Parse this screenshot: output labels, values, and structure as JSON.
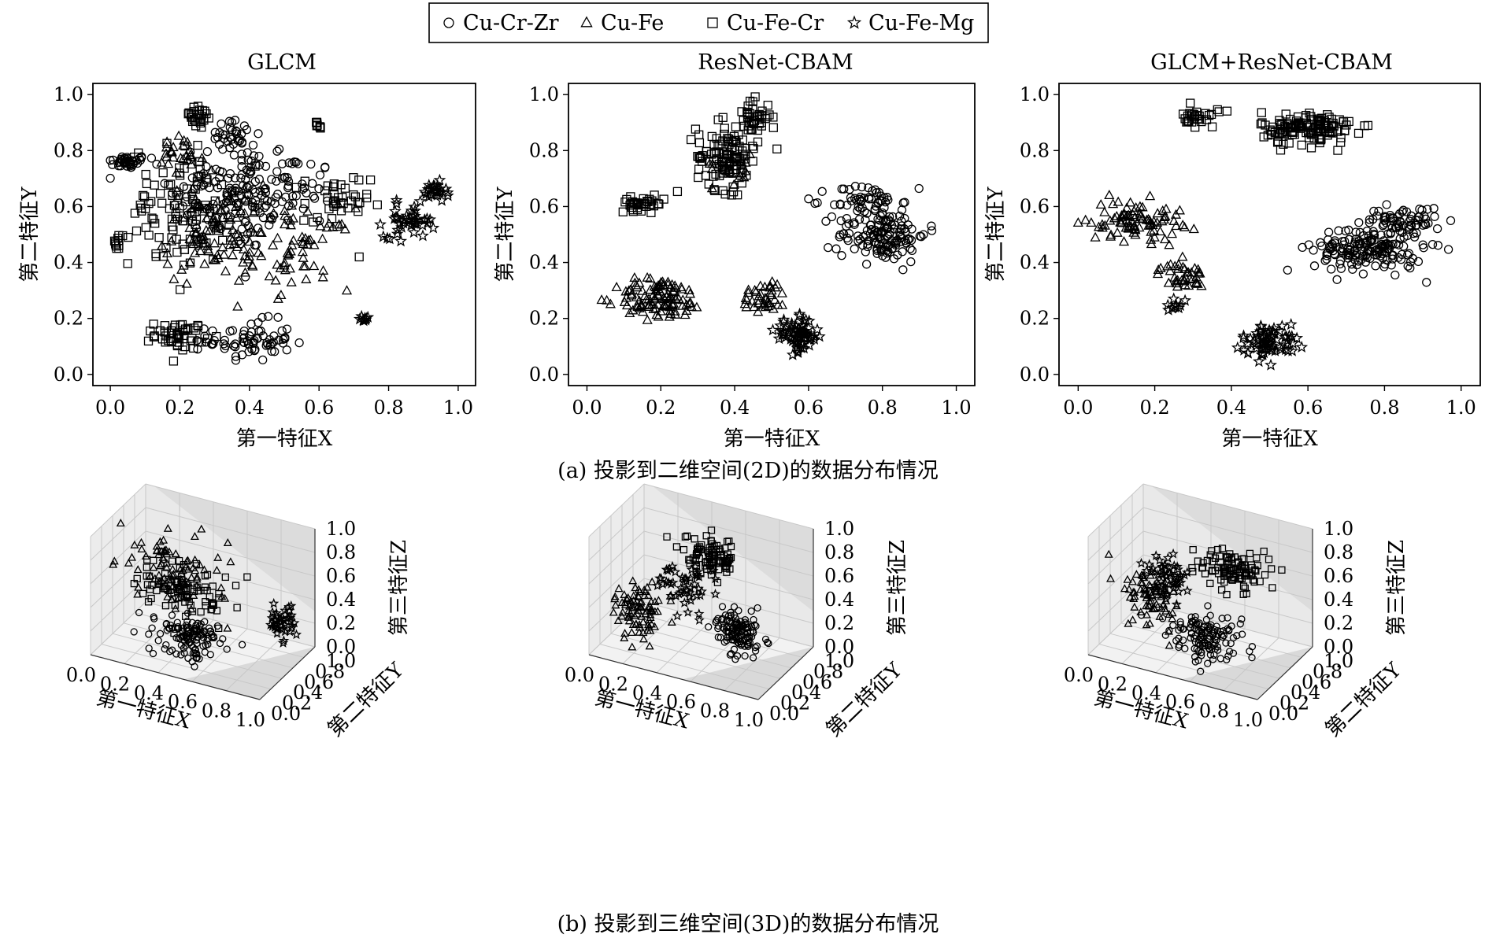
{
  "legend": {
    "items": [
      {
        "name": "Cu-Cr-Zr",
        "marker": "circle"
      },
      {
        "name": "Cu-Fe",
        "marker": "triangle"
      },
      {
        "name": "Cu-Fe-Cr",
        "marker": "square"
      },
      {
        "name": "Cu-Fe-Mg",
        "marker": "star"
      }
    ],
    "placement": "top-center"
  },
  "captions": {
    "a": "(a) 投影到二维空间(2D)的数据分布情况",
    "b": "(b) 投影到三维空间(3D)的数据分布情况"
  },
  "chart_data": [
    {
      "type": "scatter",
      "title": "GLCM",
      "xlabel": "第一特征X",
      "ylabel": "第二特征Y",
      "xlim": [
        0,
        1
      ],
      "ylim": [
        0,
        1
      ],
      "xticks": [
        "0.0",
        "0.2",
        "0.4",
        "0.6",
        "0.8",
        "1.0"
      ],
      "yticks": [
        "0.0",
        "0.2",
        "0.4",
        "0.6",
        "0.8",
        "1.0"
      ],
      "series": [
        {
          "name": "Cu-Cr-Zr",
          "clusters": [
            [
              0.05,
              0.76,
              0.05,
              0.02,
              40
            ],
            [
              0.35,
              0.65,
              0.15,
              0.18,
              120
            ],
            [
              0.5,
              0.65,
              0.12,
              0.12,
              60
            ],
            [
              0.4,
              0.12,
              0.1,
              0.06,
              70
            ],
            [
              0.35,
              0.86,
              0.06,
              0.04,
              30
            ]
          ]
        },
        {
          "name": "Cu-Fe",
          "clusters": [
            [
              0.3,
              0.5,
              0.12,
              0.15,
              100
            ],
            [
              0.55,
              0.45,
              0.12,
              0.12,
              60
            ],
            [
              0.2,
              0.78,
              0.06,
              0.06,
              25
            ]
          ]
        },
        {
          "name": "Cu-Fe-Cr",
          "clusters": [
            [
              0.2,
              0.6,
              0.12,
              0.18,
              100
            ],
            [
              0.2,
              0.14,
              0.06,
              0.04,
              50
            ],
            [
              0.65,
              0.6,
              0.08,
              0.1,
              40
            ],
            [
              0.25,
              0.92,
              0.04,
              0.04,
              25
            ],
            [
              0.02,
              0.47,
              0.01,
              0.02,
              10
            ],
            [
              0.6,
              0.89,
              0.02,
              0.01,
              8
            ]
          ]
        },
        {
          "name": "Cu-Fe-Mg",
          "clusters": [
            [
              0.86,
              0.55,
              0.06,
              0.05,
              45
            ],
            [
              0.93,
              0.65,
              0.03,
              0.03,
              25
            ],
            [
              0.73,
              0.2,
              0.01,
              0.01,
              8
            ]
          ]
        }
      ]
    },
    {
      "type": "scatter",
      "title": "ResNet-CBAM",
      "xlabel": "第一特征X",
      "ylabel": "第二特征Y",
      "xlim": [
        0,
        1
      ],
      "ylim": [
        0,
        1
      ],
      "xticks": [
        "0.0",
        "0.2",
        "0.4",
        "0.6",
        "0.8",
        "1.0"
      ],
      "yticks": [
        "0.0",
        "0.2",
        "0.4",
        "0.6",
        "0.8",
        "1.0"
      ],
      "series": [
        {
          "name": "Cu-Cr-Zr",
          "clusters": [
            [
              0.8,
              0.5,
              0.1,
              0.08,
              140
            ],
            [
              0.75,
              0.62,
              0.08,
              0.05,
              50
            ]
          ]
        },
        {
          "name": "Cu-Fe",
          "clusters": [
            [
              0.2,
              0.27,
              0.1,
              0.06,
              110
            ],
            [
              0.48,
              0.28,
              0.05,
              0.05,
              40
            ],
            [
              0.4,
              0.75,
              0.05,
              0.06,
              20
            ]
          ]
        },
        {
          "name": "Cu-Fe-Cr",
          "clusters": [
            [
              0.38,
              0.78,
              0.07,
              0.1,
              110
            ],
            [
              0.15,
              0.61,
              0.05,
              0.02,
              35
            ],
            [
              0.45,
              0.92,
              0.04,
              0.05,
              40
            ]
          ]
        },
        {
          "name": "Cu-Fe-Mg",
          "clusters": [
            [
              0.57,
              0.14,
              0.05,
              0.05,
              70
            ]
          ]
        }
      ]
    },
    {
      "type": "scatter",
      "title": "GLCM+ResNet-CBAM",
      "xlabel": "第一特征X",
      "ylabel": "第二特征Y",
      "xlim": [
        0,
        1
      ],
      "ylim": [
        0,
        1
      ],
      "xticks": [
        "0.0",
        "0.2",
        "0.4",
        "0.6",
        "0.8",
        "1.0"
      ],
      "yticks": [
        "0.0",
        "0.2",
        "0.4",
        "0.6",
        "0.8",
        "1.0"
      ],
      "series": [
        {
          "name": "Cu-Cr-Zr",
          "clusters": [
            [
              0.76,
              0.45,
              0.12,
              0.07,
              170
            ],
            [
              0.85,
              0.55,
              0.08,
              0.04,
              60
            ]
          ]
        },
        {
          "name": "Cu-Fe",
          "clusters": [
            [
              0.15,
              0.55,
              0.1,
              0.06,
              90
            ],
            [
              0.27,
              0.35,
              0.05,
              0.04,
              40
            ]
          ]
        },
        {
          "name": "Cu-Fe-Cr",
          "clusters": [
            [
              0.6,
              0.88,
              0.1,
              0.05,
              130
            ],
            [
              0.32,
              0.92,
              0.04,
              0.03,
              30
            ]
          ]
        },
        {
          "name": "Cu-Fe-Mg",
          "clusters": [
            [
              0.5,
              0.12,
              0.06,
              0.05,
              70
            ],
            [
              0.25,
              0.25,
              0.02,
              0.02,
              10
            ]
          ]
        }
      ]
    },
    {
      "type": "scatter3d",
      "title": "",
      "xlabel": "第一特征X",
      "ylabel": "第二特征Y",
      "zlabel": "第三特征Z",
      "xlim": [
        0,
        1
      ],
      "ylim": [
        0,
        1
      ],
      "zlim": [
        0,
        1
      ],
      "xticks": [
        "0.0",
        "0.2",
        "0.4",
        "0.6",
        "0.8",
        "1.0"
      ],
      "yticks": [
        "0.0",
        "0.2",
        "0.4",
        "0.6",
        "0.8",
        "1.0"
      ],
      "zticks": [
        "0.0",
        "0.2",
        "0.4",
        "0.6",
        "0.8",
        "1.0"
      ],
      "series": [
        {
          "name": "Cu-Cr-Zr",
          "clusters": [
            [
              0.5,
              0.3,
              0.2,
              0.15,
              0.12,
              120
            ]
          ]
        },
        {
          "name": "Cu-Fe",
          "clusters": [
            [
              0.3,
              0.6,
              0.55,
              0.2,
              0.15,
              90
            ]
          ]
        },
        {
          "name": "Cu-Fe-Cr",
          "clusters": [
            [
              0.4,
              0.5,
              0.45,
              0.2,
              0.15,
              90
            ]
          ]
        },
        {
          "name": "Cu-Fe-Mg",
          "clusters": [
            [
              0.9,
              0.7,
              0.3,
              0.06,
              0.1,
              40
            ]
          ]
        }
      ]
    },
    {
      "type": "scatter3d",
      "title": "",
      "xlabel": "第一特征X",
      "ylabel": "第二特征Y",
      "zlabel": "第三特征Z",
      "xlim": [
        0,
        1
      ],
      "ylim": [
        0,
        1
      ],
      "zlim": [
        0,
        1
      ],
      "xticks": [
        "0.0",
        "0.2",
        "0.4",
        "0.6",
        "0.8",
        "1.0"
      ],
      "yticks": [
        "0.0",
        "0.2",
        "0.4",
        "0.6",
        "0.8",
        "1.0"
      ],
      "zticks": [
        "0.0",
        "0.2",
        "0.4",
        "0.6",
        "0.8",
        "1.0"
      ],
      "series": [
        {
          "name": "Cu-Cr-Zr",
          "clusters": [
            [
              0.75,
              0.4,
              0.3,
              0.1,
              0.12,
              120
            ]
          ]
        },
        {
          "name": "Cu-Fe",
          "clusters": [
            [
              0.2,
              0.3,
              0.3,
              0.1,
              0.15,
              90
            ]
          ]
        },
        {
          "name": "Cu-Fe-Cr",
          "clusters": [
            [
              0.45,
              0.8,
              0.65,
              0.1,
              0.1,
              90
            ]
          ]
        },
        {
          "name": "Cu-Fe-Mg",
          "clusters": [
            [
              0.4,
              0.5,
              0.5,
              0.12,
              0.12,
              50
            ]
          ]
        }
      ]
    },
    {
      "type": "scatter3d",
      "title": "",
      "xlabel": "第一特征X",
      "ylabel": "第二特征Y",
      "zlabel": "第三特征Z",
      "xlim": [
        0,
        1
      ],
      "ylim": [
        0,
        1
      ],
      "zlim": [
        0,
        1
      ],
      "xticks": [
        "0.0",
        "0.2",
        "0.4",
        "0.6",
        "0.8",
        "1.0"
      ],
      "yticks": [
        "0.0",
        "0.2",
        "0.4",
        "0.6",
        "0.8",
        "1.0"
      ],
      "zticks": [
        "0.0",
        "0.2",
        "0.4",
        "0.6",
        "0.8",
        "1.0"
      ],
      "series": [
        {
          "name": "Cu-Cr-Zr",
          "clusters": [
            [
              0.6,
              0.3,
              0.25,
              0.15,
              0.1,
              130
            ]
          ]
        },
        {
          "name": "Cu-Fe",
          "clusters": [
            [
              0.25,
              0.4,
              0.4,
              0.12,
              0.15,
              80
            ]
          ]
        },
        {
          "name": "Cu-Fe-Cr",
          "clusters": [
            [
              0.6,
              0.8,
              0.6,
              0.15,
              0.08,
              100
            ]
          ]
        },
        {
          "name": "Cu-Fe-Mg",
          "clusters": [
            [
              0.3,
              0.55,
              0.5,
              0.1,
              0.12,
              50
            ]
          ]
        }
      ]
    }
  ]
}
